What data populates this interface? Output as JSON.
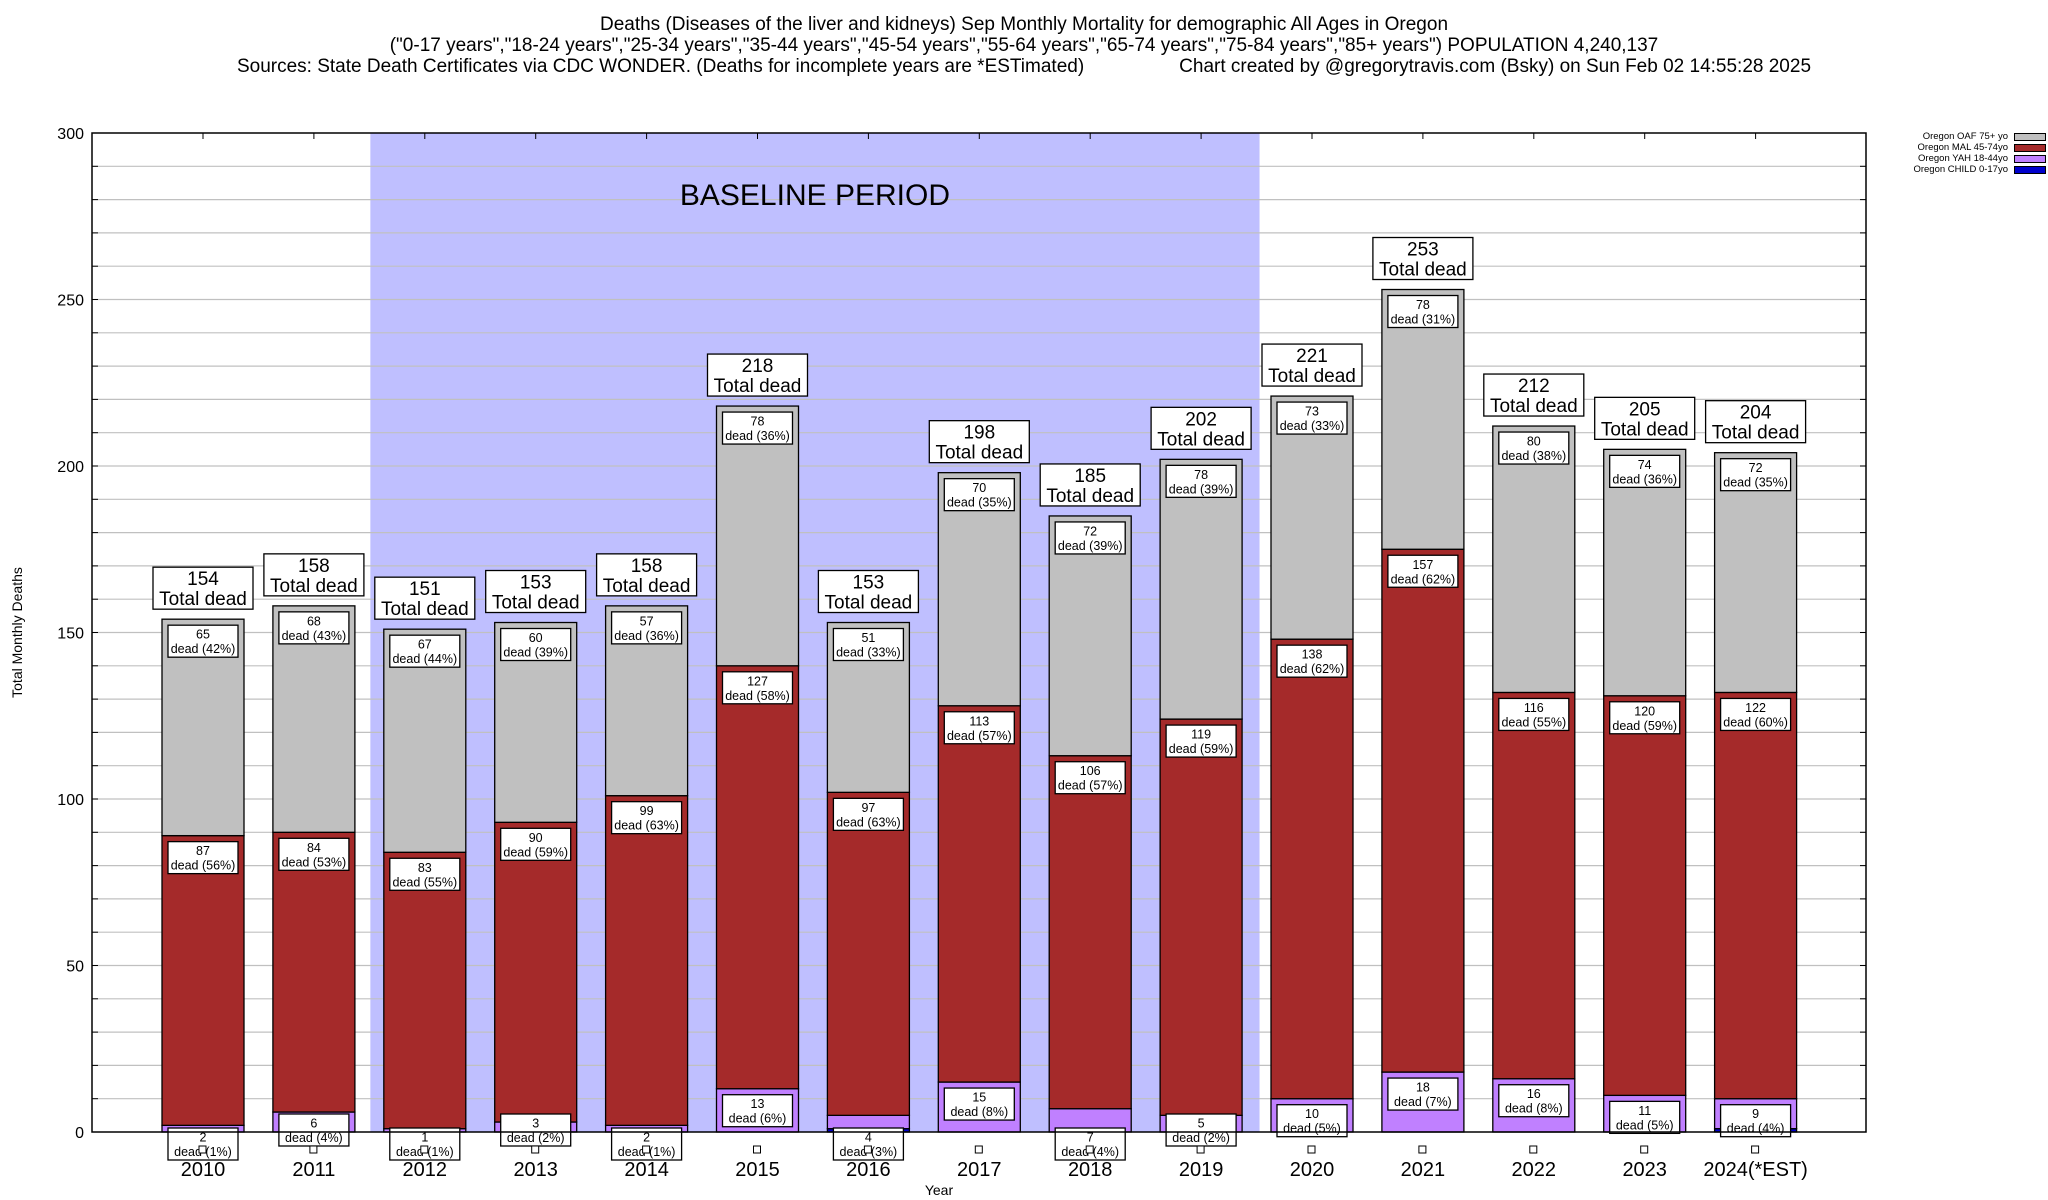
{
  "header": {
    "title": "Deaths (Diseases of the liver and kidneys) Sep Monthly Mortality for demographic All Ages in Oregon",
    "subtitle": "(\"0-17 years\",\"18-24 years\",\"25-34 years\",\"35-44 years\",\"45-54 years\",\"55-64 years\",\"65-74 years\",\"75-84 years\",\"85+ years\") POPULATION 4,240,137",
    "sources": "Sources: State Death Certificates via CDC WONDER. (Deaths for incomplete years are *ESTimated)",
    "credit": "Chart created by @gregorytravis.com (Bsky) on Sun Feb 02 14:55:28 2025"
  },
  "chart_data": {
    "type": "bar",
    "stacked": true,
    "title": "Deaths (Diseases of the liver and kidneys) Sep Monthly Mortality for demographic All Ages in Oregon",
    "xlabel": "Year",
    "ylabel": "Total Monthly Deaths",
    "ylim": [
      0,
      300
    ],
    "yticks": [
      0,
      50,
      100,
      150,
      200,
      250,
      300
    ],
    "grid": true,
    "legend_position": "top-right",
    "categories": [
      "2010",
      "2011",
      "2012",
      "2013",
      "2014",
      "2015",
      "2016",
      "2017",
      "2018",
      "2019",
      "2020",
      "2021",
      "2022",
      "2023",
      "2024(*EST)"
    ],
    "series": [
      {
        "name": "Oregon CHILD 0-17yo",
        "color": "#0000cc",
        "values": [
          0,
          0,
          0,
          0,
          0,
          0,
          1,
          0,
          0,
          0,
          0,
          0,
          0,
          0,
          1
        ]
      },
      {
        "name": "Oregon YAH 18-44yo",
        "color": "#c080ff",
        "values": [
          2,
          6,
          1,
          3,
          2,
          13,
          4,
          15,
          7,
          5,
          10,
          18,
          16,
          11,
          9
        ],
        "pct": [
          "1%",
          "4%",
          "1%",
          "2%",
          "1%",
          "6%",
          "3%",
          "8%",
          "4%",
          "2%",
          "5%",
          "7%",
          "8%",
          "5%",
          "4%"
        ]
      },
      {
        "name": "Oregon MAL 45-74yo",
        "color": "#a52a2a",
        "values": [
          87,
          84,
          83,
          90,
          99,
          127,
          97,
          113,
          106,
          119,
          138,
          157,
          116,
          120,
          122
        ],
        "pct": [
          "56%",
          "53%",
          "55%",
          "59%",
          "63%",
          "58%",
          "63%",
          "57%",
          "57%",
          "59%",
          "62%",
          "62%",
          "55%",
          "59%",
          "60%"
        ]
      },
      {
        "name": "Oregon OAF 75+ yo",
        "color": "#c0c0c0",
        "values": [
          65,
          68,
          67,
          60,
          57,
          78,
          51,
          70,
          72,
          78,
          73,
          78,
          80,
          74,
          72
        ],
        "pct": [
          "42%",
          "43%",
          "44%",
          "39%",
          "36%",
          "36%",
          "33%",
          "35%",
          "39%",
          "39%",
          "33%",
          "31%",
          "38%",
          "36%",
          "35%"
        ]
      }
    ],
    "totals": [
      154,
      158,
      151,
      153,
      158,
      218,
      153,
      198,
      185,
      202,
      221,
      253,
      212,
      205,
      204
    ],
    "total_suffix": "Total dead",
    "segment_suffix": "dead",
    "annotation": {
      "text": "BASELINE PERIOD",
      "color": "#bfbfff",
      "x_from": "2012",
      "x_to": "2019"
    }
  }
}
